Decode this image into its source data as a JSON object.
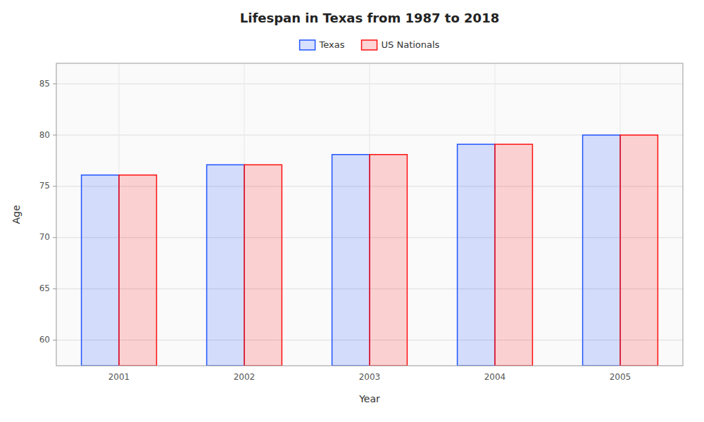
{
  "chart_data": {
    "type": "bar",
    "title": "Lifespan in Texas from 1987 to 2018",
    "x_label": "Year",
    "y_label": "Age",
    "categories": [
      2001,
      2002,
      2003,
      2004,
      2005
    ],
    "series": [
      {
        "name": "Texas",
        "color": "#2255ff",
        "values": [
          76.1,
          77.1,
          78.1,
          79.1,
          80.0
        ]
      },
      {
        "name": "US Nationals",
        "color": "#ff1111",
        "values": [
          76.1,
          77.1,
          78.1,
          79.1,
          80.0
        ]
      }
    ],
    "ylim": [
      57.5,
      87
    ],
    "yticks": [
      60,
      65,
      70,
      75,
      80,
      85
    ],
    "grid": true,
    "legend": "top"
  }
}
